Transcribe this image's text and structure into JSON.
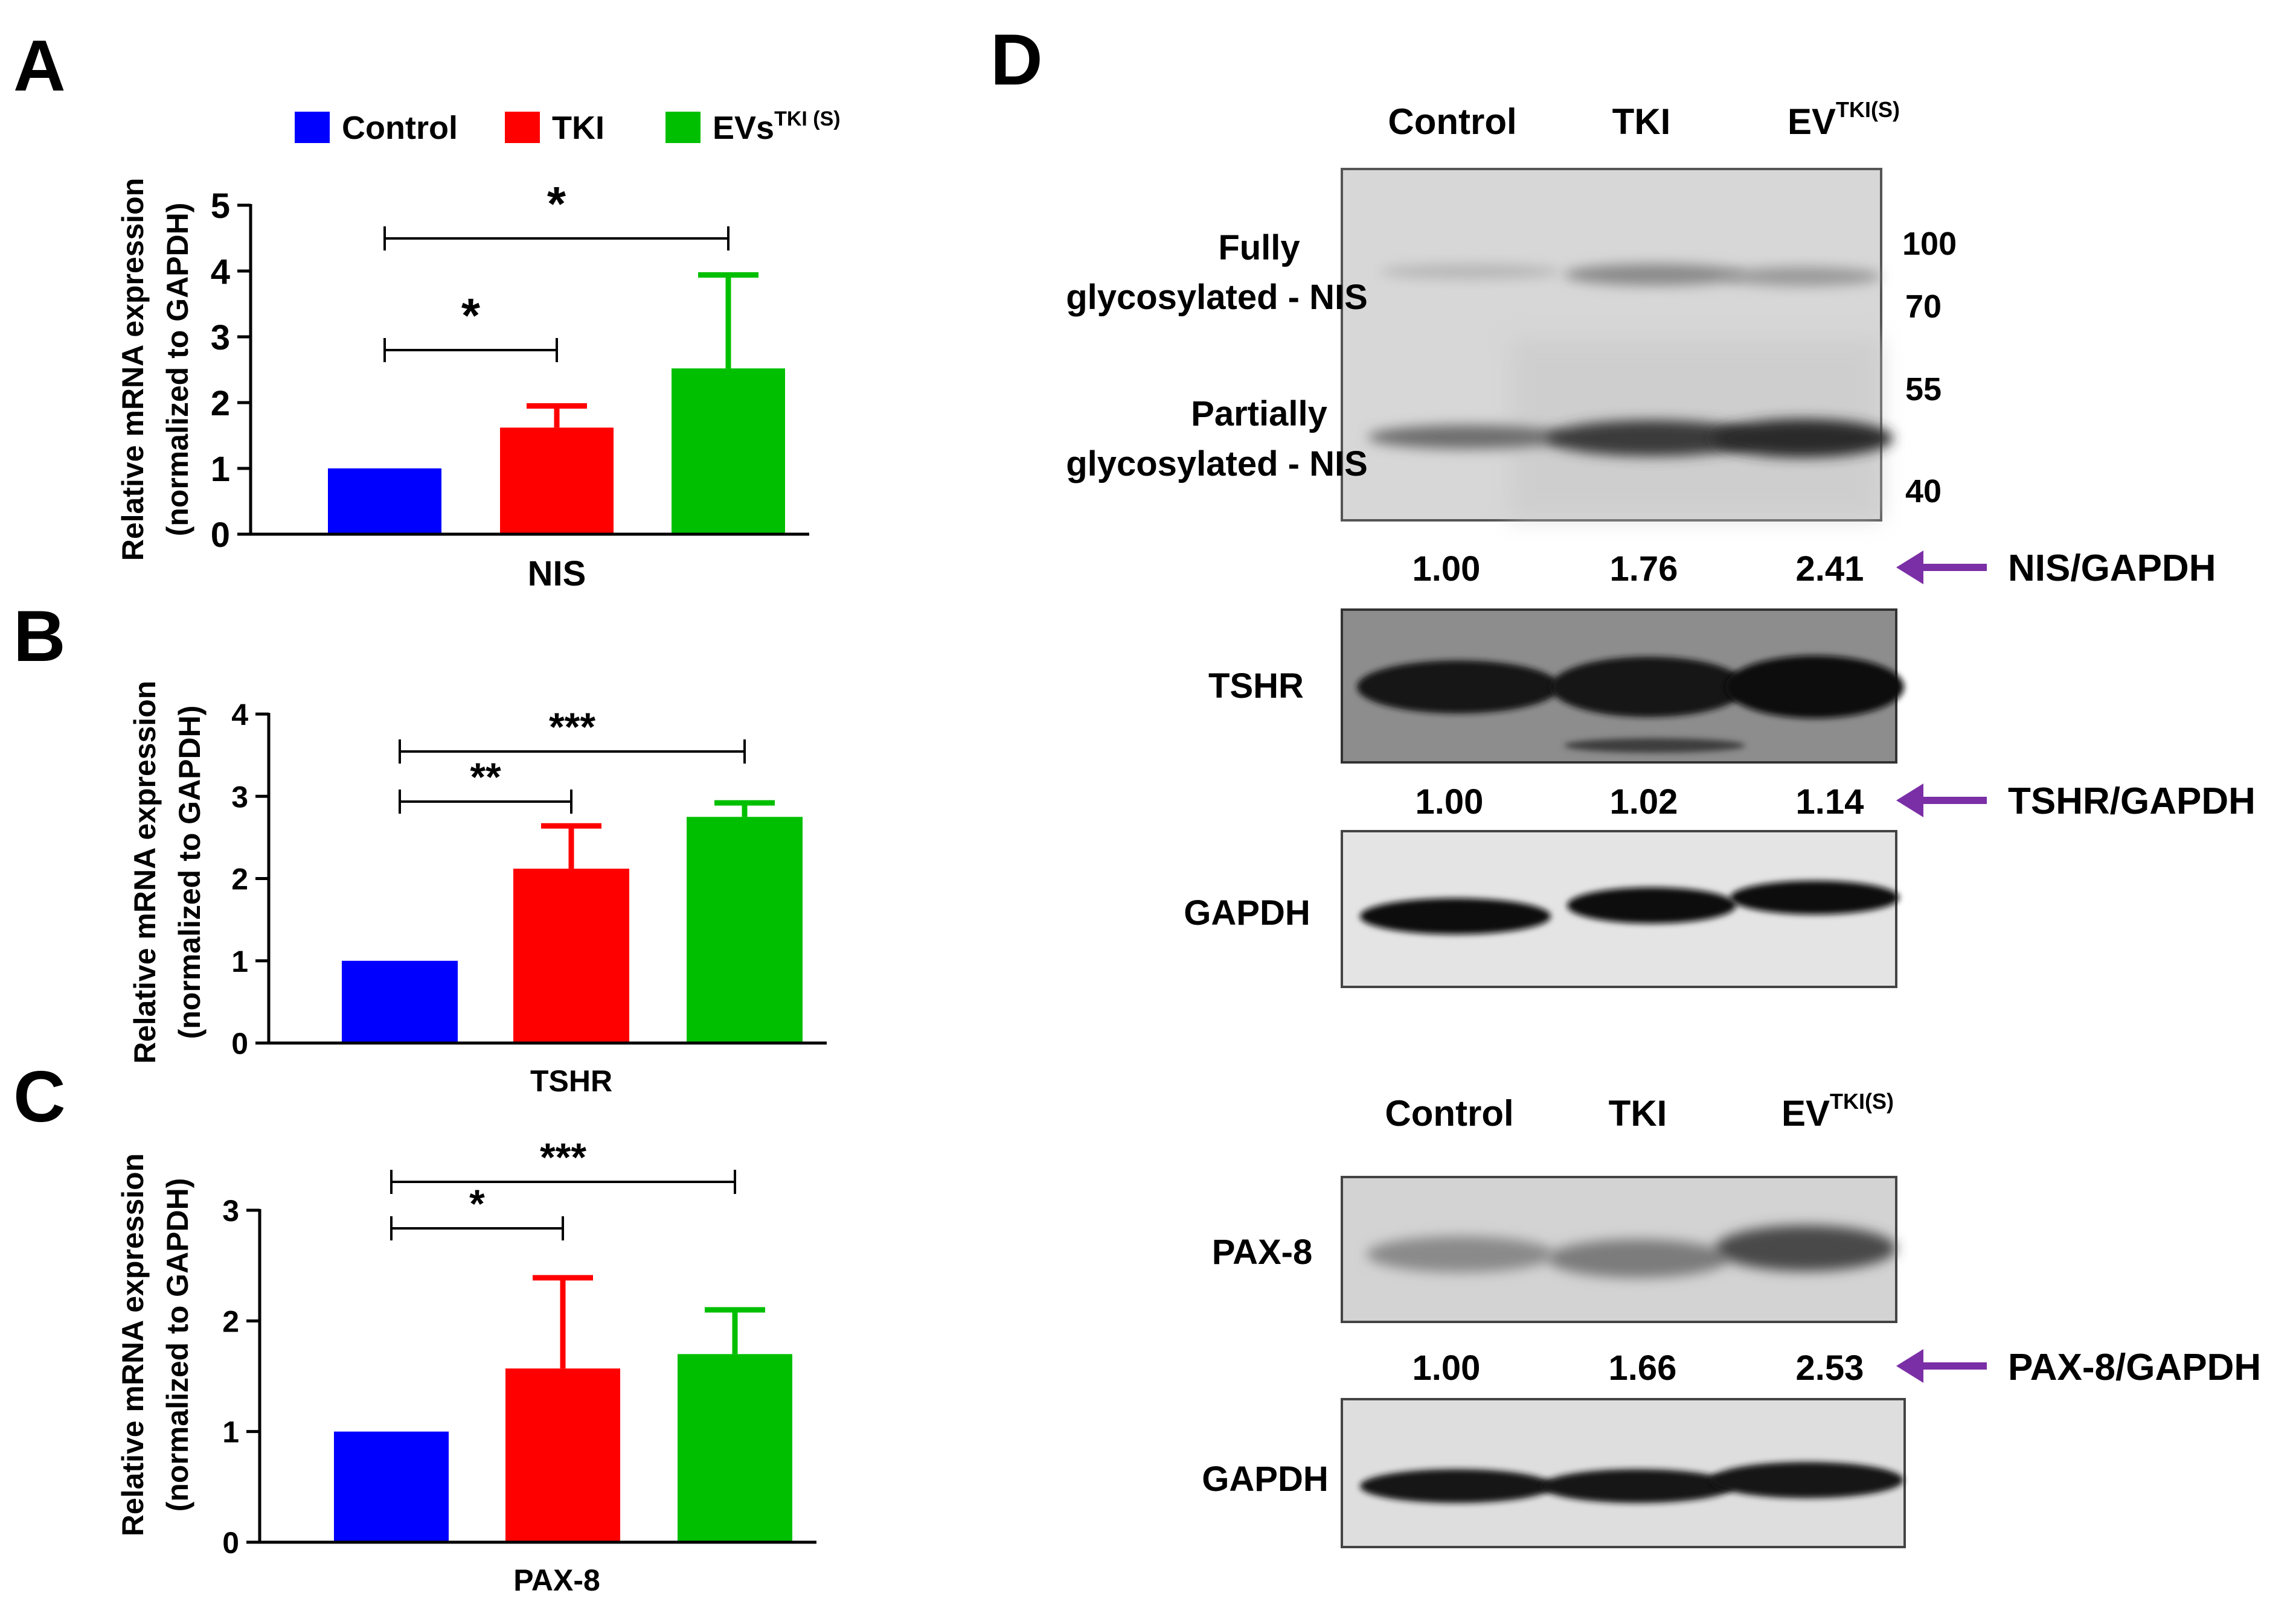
{
  "panels": {
    "A": "A",
    "B": "B",
    "C": "C",
    "D": "D"
  },
  "legend": {
    "items": [
      {
        "label": "Control",
        "sup": "",
        "color": "#0000ff"
      },
      {
        "label": "TKI",
        "sup": "",
        "color": "#ff0000"
      },
      {
        "label": "EVs",
        "sup": "TKI (S)",
        "color": "#00bf00"
      }
    ]
  },
  "chart_data": [
    {
      "type": "bar",
      "panel": "A",
      "categories": [
        "Control",
        "TKI",
        "EVs TKI (S)"
      ],
      "series": [
        {
          "values": [
            1.0,
            1.62,
            2.52
          ],
          "errors": [
            0,
            0.33,
            1.42
          ]
        }
      ],
      "colors": [
        "#0000ff",
        "#ff0000",
        "#00bf00"
      ],
      "xlabel": "NIS",
      "ylabel": [
        "Relative mRNA expression",
        "(normalized to GAPDH)"
      ],
      "ylim": [
        0,
        5
      ],
      "yticks": [
        "0",
        "1",
        "2",
        "3",
        "4",
        "5"
      ],
      "significance": [
        {
          "from": 0,
          "to": 1,
          "label": "*"
        },
        {
          "from": 0,
          "to": 2,
          "label": "*"
        }
      ]
    },
    {
      "type": "bar",
      "panel": "B",
      "categories": [
        "Control",
        "TKI",
        "EVs TKI (S)"
      ],
      "series": [
        {
          "values": [
            1.0,
            2.12,
            2.75
          ],
          "errors": [
            0,
            0.52,
            0.17
          ]
        }
      ],
      "colors": [
        "#0000ff",
        "#ff0000",
        "#00bf00"
      ],
      "xlabel": "TSHR",
      "ylabel": [
        "Relative mRNA expression",
        "(normalized to GAPDH)"
      ],
      "ylim": [
        0,
        4
      ],
      "yticks": [
        "0",
        "1",
        "2",
        "3",
        "4"
      ],
      "significance": [
        {
          "from": 0,
          "to": 1,
          "label": "**"
        },
        {
          "from": 0,
          "to": 2,
          "label": "***"
        }
      ]
    },
    {
      "type": "bar",
      "panel": "C",
      "categories": [
        "Control",
        "TKI",
        "EVs TKI (S)"
      ],
      "series": [
        {
          "values": [
            1.0,
            1.57,
            1.7
          ],
          "errors": [
            0,
            0.82,
            0.4
          ]
        }
      ],
      "colors": [
        "#0000ff",
        "#ff0000",
        "#00bf00"
      ],
      "xlabel": "PAX-8",
      "ylabel": [
        "Relative mRNA expression",
        "(normalized to GAPDH)"
      ],
      "ylim": [
        0,
        3
      ],
      "yticks": [
        "0",
        "1",
        "2",
        "3"
      ],
      "significance": [
        {
          "from": 0,
          "to": 1,
          "label": "*"
        },
        {
          "from": 0,
          "to": 2,
          "label": "***"
        }
      ]
    }
  ],
  "blots": {
    "top": {
      "lanes": [
        {
          "label": "Control",
          "sup": ""
        },
        {
          "label": "TKI",
          "sup": ""
        },
        {
          "label": "EV",
          "sup": "TKI(S)"
        }
      ],
      "nis_labels": [
        [
          "Fully",
          "glycosylated - NIS"
        ],
        [
          "Partially",
          "glycosylated - NIS"
        ]
      ],
      "markers": [
        "100",
        "70",
        "55",
        "40"
      ],
      "nis_ratio": {
        "values": [
          "1.00",
          "1.76",
          "2.41"
        ],
        "label": "NIS/GAPDH"
      },
      "tshr": {
        "label": "TSHR"
      },
      "tshr_ratio": {
        "values": [
          "1.00",
          "1.02",
          "1.14"
        ],
        "label": "TSHR/GAPDH"
      },
      "gapdh": {
        "label": "GAPDH"
      }
    },
    "bottom": {
      "lanes": [
        {
          "label": "Control",
          "sup": ""
        },
        {
          "label": "TKI",
          "sup": ""
        },
        {
          "label": "EV",
          "sup": "TKI(S)"
        }
      ],
      "pax8": {
        "label": "PAX-8"
      },
      "pax8_ratio": {
        "values": [
          "1.00",
          "1.66",
          "2.53"
        ],
        "label": "PAX-8/GAPDH"
      },
      "gapdh": {
        "label": "GAPDH"
      }
    },
    "arrow_color": "#7b2fa6"
  }
}
